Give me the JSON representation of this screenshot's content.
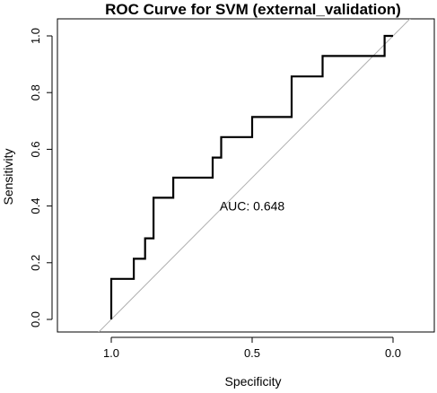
{
  "chart_data": {
    "type": "line",
    "title": "ROC Curve for SVM (external_validation)",
    "xlabel": "Specificity",
    "ylabel": "Sensitivity",
    "xlim": [
      1.05,
      -0.03
    ],
    "ylim": [
      0.0,
      1.0
    ],
    "x_reversed": true,
    "x_ticks": [
      1.0,
      0.5,
      0.0
    ],
    "x_tick_labels": [
      "1.0",
      "0.5",
      "0.0"
    ],
    "y_ticks": [
      0.0,
      0.2,
      0.4,
      0.6,
      0.8,
      1.0
    ],
    "y_tick_labels": [
      "0.0",
      "0.2",
      "0.4",
      "0.6",
      "0.8",
      "1.0"
    ],
    "grid": false,
    "series": [
      {
        "style": "step",
        "color": "#000000",
        "x": [
          1.0,
          1.0,
          0.92,
          0.92,
          0.88,
          0.88,
          0.85,
          0.85,
          0.78,
          0.78,
          0.64,
          0.64,
          0.61,
          0.61,
          0.5,
          0.5,
          0.36,
          0.36,
          0.25,
          0.25,
          0.03,
          0.03,
          0.0
        ],
        "y": [
          0.0,
          0.143,
          0.143,
          0.214,
          0.214,
          0.286,
          0.286,
          0.429,
          0.429,
          0.5,
          0.5,
          0.571,
          0.571,
          0.643,
          0.643,
          0.714,
          0.714,
          0.857,
          0.857,
          0.929,
          0.929,
          1.0,
          1.0
        ]
      }
    ],
    "reference_line": {
      "x": [
        1.0,
        0.0
      ],
      "y": [
        0.0,
        1.0
      ],
      "color": "#b0b0b0"
    },
    "annotations": [
      {
        "text": "AUC: 0.648",
        "x": 0.5,
        "y": 0.4
      }
    ]
  },
  "colors": {
    "axis": "#000000",
    "curve": "#000000",
    "reference": "#b0b0b0",
    "background": "#ffffff"
  }
}
